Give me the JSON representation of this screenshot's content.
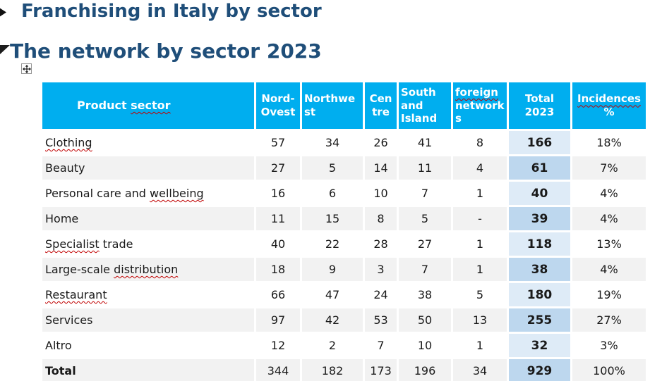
{
  "headings": {
    "title": "Franchising in Italy by sector",
    "subtitle": "The network by sector 2023"
  },
  "icons": {
    "title_collapse": "triangle-right-collapsed",
    "subtitle_collapse": "triangle-expanded",
    "move_handle": "four-way-arrow-cross"
  },
  "colors": {
    "header_bg": "#00AEEF",
    "heading_color": "#1F4E79",
    "row_alt": "#F2F2F2",
    "total_light": "#DEEBF7",
    "total_dark": "#BDD7EE",
    "squiggle": "#C00000"
  },
  "table": {
    "header": [
      {
        "key": "product-sector",
        "align": "left",
        "segments": [
          {
            "t": "Product ",
            "wavy": false
          },
          {
            "t": "sector",
            "wavy": true
          }
        ]
      },
      {
        "key": "nord-ovest",
        "align": "center",
        "segments": [
          {
            "t": "Nord-Ovest",
            "wavy": false
          }
        ]
      },
      {
        "key": "northwest",
        "align": "left",
        "segments": [
          {
            "t": "Northwest",
            "wavy": false
          }
        ]
      },
      {
        "key": "centre",
        "align": "center",
        "segments": [
          {
            "t": "Centre",
            "wavy": false
          }
        ]
      },
      {
        "key": "south-and-island",
        "align": "left",
        "segments": [
          {
            "t": "South and Island",
            "wavy": false
          }
        ]
      },
      {
        "key": "foreign-networks",
        "align": "left",
        "segments": [
          {
            "t": "foreign",
            "wavy": true
          },
          {
            "t": " networks",
            "wavy": false
          }
        ]
      },
      {
        "key": "total-2023",
        "align": "center",
        "segments": [
          {
            "t": "Total 2023",
            "wavy": false
          }
        ]
      },
      {
        "key": "incidences-pct",
        "align": "center",
        "segments": [
          {
            "t": "Incidences",
            "wavy": true
          },
          {
            "t": " %",
            "wavy": false
          }
        ]
      }
    ],
    "rows": [
      {
        "key": "clothing",
        "sector_segments": [
          {
            "t": "Clothing",
            "wavy": true
          }
        ],
        "values": [
          "57",
          "34",
          "26",
          "41",
          "8"
        ],
        "total": "166",
        "incidence": "18%"
      },
      {
        "key": "beauty",
        "sector_segments": [
          {
            "t": "Beauty",
            "wavy": false
          }
        ],
        "values": [
          "27",
          "5",
          "14",
          "11",
          "4"
        ],
        "total": "61",
        "incidence": "7%"
      },
      {
        "key": "personal-care-and-wellbeing",
        "sector_segments": [
          {
            "t": "Personal care and ",
            "wavy": false
          },
          {
            "t": "wellbeing",
            "wavy": true
          }
        ],
        "values": [
          "16",
          "6",
          "10",
          "7",
          "1"
        ],
        "total": "40",
        "incidence": "4%"
      },
      {
        "key": "home",
        "sector_segments": [
          {
            "t": "Home",
            "wavy": false
          }
        ],
        "values": [
          "11",
          "15",
          "8",
          "5",
          "-"
        ],
        "total": "39",
        "incidence": "4%"
      },
      {
        "key": "specialist-trade",
        "sector_segments": [
          {
            "t": "Specialist",
            "wavy": true
          },
          {
            "t": " trade",
            "wavy": false
          }
        ],
        "values": [
          "40",
          "22",
          "28",
          "27",
          "1"
        ],
        "total": "118",
        "incidence": "13%"
      },
      {
        "key": "large-scale-distribution",
        "sector_segments": [
          {
            "t": "Large-scale ",
            "wavy": false
          },
          {
            "t": "distribution",
            "wavy": true
          }
        ],
        "values": [
          "18",
          "9",
          "3",
          "7",
          "1"
        ],
        "total": "38",
        "incidence": "4%"
      },
      {
        "key": "restaurant",
        "sector_segments": [
          {
            "t": "Restaurant",
            "wavy": true
          }
        ],
        "values": [
          "66",
          "47",
          "24",
          "38",
          "5"
        ],
        "total": "180",
        "incidence": "19%"
      },
      {
        "key": "services",
        "sector_segments": [
          {
            "t": "Services",
            "wavy": false
          }
        ],
        "values": [
          "97",
          "42",
          "53",
          "50",
          "13"
        ],
        "total": "255",
        "incidence": "27%"
      },
      {
        "key": "altro",
        "sector_segments": [
          {
            "t": "Altro",
            "wavy": false
          }
        ],
        "values": [
          "12",
          "2",
          "7",
          "10",
          "1"
        ],
        "total": "32",
        "incidence": "3%"
      },
      {
        "key": "total",
        "is_total": true,
        "sector_segments": [
          {
            "t": "Total",
            "wavy": false
          }
        ],
        "values": [
          "344",
          "182",
          "173",
          "196",
          "34"
        ],
        "total": "929",
        "incidence": "100%"
      }
    ]
  }
}
